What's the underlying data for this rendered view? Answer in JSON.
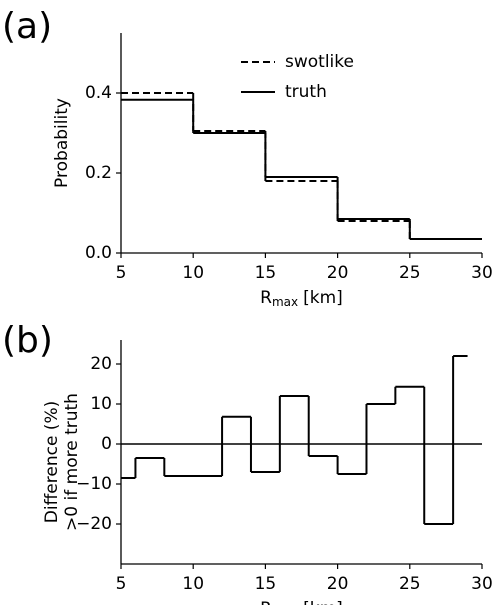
{
  "chart_data": [
    {
      "type": "step-histogram",
      "panel_label": "(a)",
      "ylabel": "Probability",
      "xlabel": {
        "symbol": "R",
        "subscript": "max",
        "unit": "[km]"
      },
      "bins": [
        5,
        10,
        15,
        20,
        25,
        30
      ],
      "series": [
        {
          "name": "swotlike",
          "color": "#000000",
          "linestyle": "dashed",
          "values": [
            0.4,
            0.305,
            0.18,
            0.08,
            0.035
          ]
        },
        {
          "name": "truth",
          "color": "#000000",
          "linestyle": "solid",
          "values": [
            0.383,
            0.3,
            0.19,
            0.085,
            0.035
          ]
        }
      ],
      "xlim": [
        5,
        30
      ],
      "xticks": [
        5,
        10,
        15,
        20,
        25,
        30
      ],
      "ylim": [
        0,
        0.55
      ],
      "yticks": [
        {
          "value": 0,
          "label": "0.0"
        },
        0.2,
        0.4
      ],
      "legend": "upper-center"
    },
    {
      "type": "step-histogram",
      "panel_label": "(b)",
      "ylabel": [
        "Difference (%)",
        ">0 if more truth"
      ],
      "xlabel": {
        "symbol": "R",
        "subscript": "max",
        "unit": "[km]"
      },
      "bins": [
        5,
        6,
        8,
        12,
        14,
        16,
        18,
        20,
        22,
        24,
        26,
        28,
        29
      ],
      "series": [
        {
          "color": "#000000",
          "linestyle": "solid",
          "values": [
            -8.5,
            -3.5,
            -8,
            6.8,
            -7,
            12,
            -3,
            -7.5,
            10,
            14.3,
            -20,
            22
          ]
        }
      ],
      "zero_line": true,
      "xlim": [
        5,
        30
      ],
      "xticks": [
        5,
        10,
        15,
        20,
        25,
        30
      ],
      "ylim": [
        -30,
        26
      ],
      "yticks": [
        {
          "value": -20,
          "label": "−20"
        },
        {
          "value": -10,
          "label": "−10"
        },
        0,
        10,
        20
      ]
    }
  ]
}
